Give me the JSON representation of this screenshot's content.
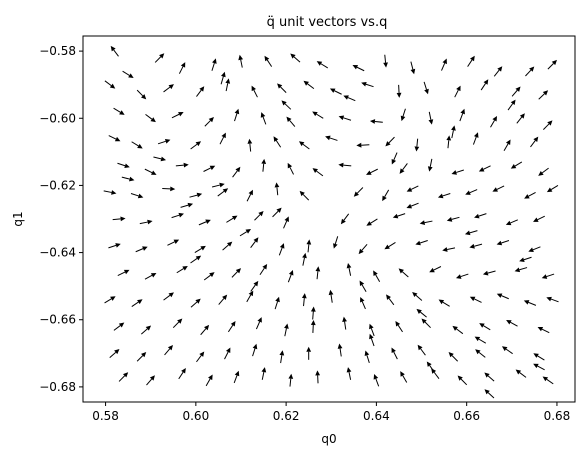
{
  "chart_data": {
    "type": "quiver",
    "title": "q̈ unit vectors vs.q",
    "xlabel": "q0",
    "ylabel": "q1",
    "xlim": [
      0.575,
      0.684
    ],
    "ylim": [
      -0.6845,
      -0.5755
    ],
    "xticks": [
      0.58,
      0.6,
      0.62,
      0.64,
      0.66,
      0.68
    ],
    "xtick_labels": [
      "0.58",
      "0.60",
      "0.62",
      "0.64",
      "0.66",
      "0.68"
    ],
    "yticks": [
      -0.58,
      -0.6,
      -0.62,
      -0.64,
      -0.66,
      -0.68
    ],
    "ytick_labels": [
      "−0.58",
      "−0.60",
      "−0.62",
      "−0.64",
      "−0.66",
      "−0.68"
    ],
    "grid": false,
    "arrow_color": "#000000",
    "vector_field": {
      "center": [
        0.628,
        -0.628
      ],
      "description": "unit direction vectors on a scattered grid, swirling around a central point"
    },
    "vectors": [
      [
        0.582,
        -0.58,
        -0.6,
        0.8
      ],
      [
        0.585,
        -0.587,
        0.85,
        -0.52
      ],
      [
        0.592,
        -0.582,
        0.7,
        0.71
      ],
      [
        0.597,
        -0.585,
        0.45,
        0.89
      ],
      [
        0.604,
        -0.584,
        0.3,
        0.95
      ],
      [
        0.61,
        -0.583,
        -0.2,
        0.98
      ],
      [
        0.616,
        -0.583,
        -0.55,
        0.84
      ],
      [
        0.622,
        -0.582,
        -0.75,
        0.66
      ],
      [
        0.628,
        -0.584,
        -0.85,
        0.52
      ],
      [
        0.636,
        -0.585,
        -0.9,
        0.44
      ],
      [
        0.642,
        -0.583,
        0.1,
        -0.99
      ],
      [
        0.648,
        -0.585,
        0.25,
        -0.97
      ],
      [
        0.655,
        -0.584,
        0.4,
        0.92
      ],
      [
        0.661,
        -0.583,
        0.55,
        0.84
      ],
      [
        0.667,
        -0.586,
        0.62,
        0.78
      ],
      [
        0.674,
        -0.586,
        0.68,
        0.73
      ],
      [
        0.679,
        -0.584,
        0.7,
        0.71
      ],
      [
        0.581,
        -0.59,
        0.8,
        -0.6
      ],
      [
        0.588,
        -0.593,
        0.7,
        -0.71
      ],
      [
        0.594,
        -0.591,
        0.8,
        0.6
      ],
      [
        0.601,
        -0.592,
        0.6,
        0.8
      ],
      [
        0.607,
        -0.59,
        0.2,
        0.98
      ],
      [
        0.613,
        -0.592,
        -0.45,
        0.89
      ],
      [
        0.619,
        -0.591,
        -0.7,
        0.71
      ],
      [
        0.625,
        -0.59,
        -0.8,
        0.6
      ],
      [
        0.631,
        -0.592,
        -0.9,
        0.44
      ],
      [
        0.638,
        -0.59,
        -0.95,
        0.31
      ],
      [
        0.645,
        -0.592,
        0.05,
        -1.0
      ],
      [
        0.651,
        -0.591,
        0.3,
        -0.95
      ],
      [
        0.658,
        -0.592,
        0.45,
        0.89
      ],
      [
        0.664,
        -0.59,
        0.55,
        0.83
      ],
      [
        0.671,
        -0.592,
        0.65,
        0.76
      ],
      [
        0.677,
        -0.593,
        0.72,
        0.69
      ],
      [
        0.583,
        -0.598,
        0.85,
        -0.52
      ],
      [
        0.59,
        -0.6,
        0.8,
        -0.6
      ],
      [
        0.596,
        -0.599,
        0.9,
        0.44
      ],
      [
        0.603,
        -0.601,
        0.7,
        0.71
      ],
      [
        0.609,
        -0.599,
        0.3,
        0.95
      ],
      [
        0.615,
        -0.6,
        -0.35,
        0.94
      ],
      [
        0.621,
        -0.601,
        -0.65,
        0.76
      ],
      [
        0.627,
        -0.599,
        -0.85,
        0.52
      ],
      [
        0.633,
        -0.6,
        -0.95,
        0.31
      ],
      [
        0.64,
        -0.601,
        -0.99,
        0.1
      ],
      [
        0.646,
        -0.599,
        -0.3,
        -0.95
      ],
      [
        0.652,
        -0.6,
        0.2,
        -0.98
      ],
      [
        0.659,
        -0.599,
        0.35,
        0.94
      ],
      [
        0.666,
        -0.601,
        0.5,
        0.87
      ],
      [
        0.672,
        -0.6,
        0.62,
        0.78
      ],
      [
        0.678,
        -0.602,
        0.7,
        0.71
      ],
      [
        0.582,
        -0.606,
        0.9,
        -0.44
      ],
      [
        0.587,
        -0.608,
        0.85,
        -0.52
      ],
      [
        0.593,
        -0.607,
        0.95,
        0.31
      ],
      [
        0.6,
        -0.608,
        0.8,
        0.6
      ],
      [
        0.606,
        -0.606,
        0.45,
        0.89
      ],
      [
        0.612,
        -0.608,
        -0.1,
        0.99
      ],
      [
        0.618,
        -0.607,
        -0.55,
        0.84
      ],
      [
        0.624,
        -0.608,
        -0.8,
        0.6
      ],
      [
        0.63,
        -0.606,
        -0.95,
        0.31
      ],
      [
        0.637,
        -0.608,
        -1.0,
        -0.05
      ],
      [
        0.643,
        -0.607,
        -0.7,
        -0.71
      ],
      [
        0.649,
        -0.608,
        -0.1,
        -0.99
      ],
      [
        0.656,
        -0.607,
        0.1,
        0.99
      ],
      [
        0.662,
        -0.606,
        0.35,
        0.94
      ],
      [
        0.669,
        -0.608,
        0.5,
        0.87
      ],
      [
        0.675,
        -0.607,
        0.6,
        0.8
      ],
      [
        0.584,
        -0.614,
        0.95,
        -0.31
      ],
      [
        0.59,
        -0.616,
        0.9,
        -0.44
      ],
      [
        0.597,
        -0.614,
        0.99,
        0.1
      ],
      [
        0.603,
        -0.615,
        0.9,
        0.44
      ],
      [
        0.609,
        -0.616,
        0.6,
        0.8
      ],
      [
        0.615,
        -0.614,
        0.1,
        0.99
      ],
      [
        0.621,
        -0.615,
        -0.45,
        0.89
      ],
      [
        0.627,
        -0.616,
        -0.8,
        0.6
      ],
      [
        0.633,
        -0.614,
        -0.99,
        0.1
      ],
      [
        0.639,
        -0.616,
        -0.9,
        -0.44
      ],
      [
        0.646,
        -0.615,
        -0.6,
        -0.8
      ],
      [
        0.652,
        -0.614,
        -0.2,
        -0.98
      ],
      [
        0.658,
        -0.616,
        -0.95,
        -0.31
      ],
      [
        0.664,
        -0.615,
        -0.9,
        -0.44
      ],
      [
        0.671,
        -0.614,
        -0.85,
        -0.52
      ],
      [
        0.677,
        -0.616,
        -0.8,
        -0.6
      ],
      [
        0.581,
        -0.622,
        0.98,
        -0.2
      ],
      [
        0.587,
        -0.623,
        0.95,
        -0.31
      ],
      [
        0.594,
        -0.621,
        1.0,
        -0.05
      ],
      [
        0.6,
        -0.623,
        0.97,
        0.26
      ],
      [
        0.606,
        -0.622,
        0.8,
        0.6
      ],
      [
        0.612,
        -0.623,
        0.45,
        0.89
      ],
      [
        0.618,
        -0.621,
        -0.1,
        0.99
      ],
      [
        0.624,
        -0.623,
        -0.7,
        0.71
      ],
      [
        0.636,
        -0.622,
        -0.7,
        -0.71
      ],
      [
        0.642,
        -0.623,
        -0.5,
        -0.87
      ],
      [
        0.648,
        -0.621,
        -0.9,
        -0.44
      ],
      [
        0.655,
        -0.623,
        -0.95,
        -0.31
      ],
      [
        0.661,
        -0.622,
        -0.92,
        -0.39
      ],
      [
        0.667,
        -0.621,
        -0.9,
        -0.44
      ],
      [
        0.674,
        -0.623,
        -0.88,
        -0.48
      ],
      [
        0.679,
        -0.621,
        -0.85,
        -0.52
      ],
      [
        0.583,
        -0.63,
        0.99,
        0.1
      ],
      [
        0.589,
        -0.631,
        0.98,
        0.2
      ],
      [
        0.596,
        -0.629,
        0.95,
        0.31
      ],
      [
        0.602,
        -0.631,
        0.92,
        0.39
      ],
      [
        0.608,
        -0.63,
        0.85,
        0.52
      ],
      [
        0.614,
        -0.629,
        0.7,
        0.71
      ],
      [
        0.62,
        -0.631,
        0.4,
        0.92
      ],
      [
        0.633,
        -0.63,
        -0.6,
        -0.8
      ],
      [
        0.639,
        -0.631,
        -0.85,
        -0.52
      ],
      [
        0.645,
        -0.629,
        -0.95,
        -0.31
      ],
      [
        0.651,
        -0.631,
        -0.98,
        -0.2
      ],
      [
        0.657,
        -0.63,
        -0.97,
        -0.26
      ],
      [
        0.663,
        -0.629,
        -0.95,
        -0.31
      ],
      [
        0.67,
        -0.631,
        -0.92,
        -0.39
      ],
      [
        0.676,
        -0.63,
        -0.9,
        -0.44
      ],
      [
        0.582,
        -0.638,
        0.95,
        0.31
      ],
      [
        0.588,
        -0.639,
        0.92,
        0.39
      ],
      [
        0.595,
        -0.637,
        0.9,
        0.44
      ],
      [
        0.601,
        -0.639,
        0.85,
        0.52
      ],
      [
        0.607,
        -0.638,
        0.75,
        0.66
      ],
      [
        0.613,
        -0.637,
        0.6,
        0.8
      ],
      [
        0.619,
        -0.639,
        0.35,
        0.94
      ],
      [
        0.625,
        -0.638,
        0.1,
        0.99
      ],
      [
        0.631,
        -0.637,
        -0.3,
        -0.95
      ],
      [
        0.637,
        -0.639,
        -0.65,
        -0.76
      ],
      [
        0.643,
        -0.638,
        -0.85,
        -0.52
      ],
      [
        0.65,
        -0.637,
        -0.95,
        -0.31
      ],
      [
        0.656,
        -0.639,
        -0.98,
        -0.2
      ],
      [
        0.662,
        -0.638,
        -0.97,
        -0.26
      ],
      [
        0.668,
        -0.637,
        -0.95,
        -0.31
      ],
      [
        0.675,
        -0.639,
        -0.93,
        -0.37
      ],
      [
        0.584,
        -0.646,
        0.9,
        0.44
      ],
      [
        0.59,
        -0.647,
        0.88,
        0.48
      ],
      [
        0.597,
        -0.645,
        0.85,
        0.52
      ],
      [
        0.603,
        -0.647,
        0.8,
        0.6
      ],
      [
        0.609,
        -0.646,
        0.7,
        0.71
      ],
      [
        0.615,
        -0.645,
        0.55,
        0.83
      ],
      [
        0.621,
        -0.647,
        0.35,
        0.94
      ],
      [
        0.627,
        -0.646,
        0.1,
        0.99
      ],
      [
        0.634,
        -0.645,
        -0.2,
        0.98
      ],
      [
        0.64,
        -0.647,
        -0.5,
        0.87
      ],
      [
        0.646,
        -0.646,
        -0.75,
        0.66
      ],
      [
        0.653,
        -0.645,
        -0.9,
        -0.44
      ],
      [
        0.659,
        -0.647,
        -0.95,
        -0.31
      ],
      [
        0.665,
        -0.646,
        -0.97,
        -0.26
      ],
      [
        0.672,
        -0.645,
        -0.96,
        -0.28
      ],
      [
        0.678,
        -0.647,
        -0.95,
        -0.31
      ],
      [
        0.581,
        -0.654,
        0.85,
        0.52
      ],
      [
        0.587,
        -0.655,
        0.83,
        0.56
      ],
      [
        0.594,
        -0.653,
        0.8,
        0.6
      ],
      [
        0.6,
        -0.655,
        0.75,
        0.66
      ],
      [
        0.606,
        -0.654,
        0.65,
        0.76
      ],
      [
        0.612,
        -0.653,
        0.5,
        0.87
      ],
      [
        0.618,
        -0.655,
        0.3,
        0.95
      ],
      [
        0.624,
        -0.654,
        0.1,
        0.99
      ],
      [
        0.63,
        -0.653,
        -0.15,
        0.99
      ],
      [
        0.637,
        -0.655,
        -0.4,
        0.92
      ],
      [
        0.643,
        -0.654,
        -0.6,
        0.8
      ],
      [
        0.649,
        -0.653,
        -0.75,
        0.66
      ],
      [
        0.655,
        -0.655,
        -0.85,
        0.52
      ],
      [
        0.662,
        -0.654,
        -0.9,
        0.44
      ],
      [
        0.668,
        -0.653,
        -0.92,
        0.39
      ],
      [
        0.674,
        -0.655,
        -0.93,
        0.37
      ],
      [
        0.679,
        -0.654,
        -0.94,
        0.34
      ],
      [
        0.583,
        -0.662,
        0.8,
        0.6
      ],
      [
        0.589,
        -0.663,
        0.75,
        0.66
      ],
      [
        0.596,
        -0.661,
        0.7,
        0.71
      ],
      [
        0.602,
        -0.663,
        0.65,
        0.76
      ],
      [
        0.608,
        -0.662,
        0.55,
        0.83
      ],
      [
        0.614,
        -0.661,
        0.4,
        0.92
      ],
      [
        0.62,
        -0.663,
        0.2,
        0.98
      ],
      [
        0.626,
        -0.662,
        0.05,
        1.0
      ],
      [
        0.633,
        -0.661,
        -0.15,
        0.99
      ],
      [
        0.639,
        -0.663,
        -0.35,
        0.94
      ],
      [
        0.645,
        -0.662,
        -0.55,
        0.83
      ],
      [
        0.651,
        -0.661,
        -0.7,
        0.71
      ],
      [
        0.658,
        -0.663,
        -0.8,
        0.6
      ],
      [
        0.664,
        -0.662,
        -0.85,
        0.52
      ],
      [
        0.67,
        -0.661,
        -0.88,
        0.48
      ],
      [
        0.677,
        -0.663,
        -0.9,
        0.44
      ],
      [
        0.582,
        -0.67,
        0.75,
        0.66
      ],
      [
        0.588,
        -0.671,
        0.7,
        0.71
      ],
      [
        0.594,
        -0.669,
        0.65,
        0.76
      ],
      [
        0.601,
        -0.671,
        0.6,
        0.8
      ],
      [
        0.607,
        -0.67,
        0.45,
        0.89
      ],
      [
        0.613,
        -0.669,
        0.3,
        0.95
      ],
      [
        0.619,
        -0.671,
        0.15,
        0.99
      ],
      [
        0.625,
        -0.67,
        0.0,
        1.0
      ],
      [
        0.632,
        -0.669,
        -0.15,
        0.99
      ],
      [
        0.638,
        -0.671,
        -0.3,
        0.95
      ],
      [
        0.644,
        -0.67,
        -0.45,
        0.89
      ],
      [
        0.65,
        -0.669,
        -0.6,
        0.8
      ],
      [
        0.657,
        -0.671,
        -0.7,
        0.71
      ],
      [
        0.663,
        -0.67,
        -0.78,
        0.63
      ],
      [
        0.669,
        -0.669,
        -0.82,
        0.57
      ],
      [
        0.676,
        -0.671,
        -0.85,
        0.52
      ],
      [
        0.584,
        -0.677,
        0.7,
        0.71
      ],
      [
        0.59,
        -0.678,
        0.65,
        0.76
      ],
      [
        0.597,
        -0.676,
        0.55,
        0.83
      ],
      [
        0.603,
        -0.678,
        0.5,
        0.87
      ],
      [
        0.609,
        -0.677,
        0.35,
        0.94
      ],
      [
        0.615,
        -0.676,
        0.2,
        0.98
      ],
      [
        0.621,
        -0.678,
        0.1,
        0.99
      ],
      [
        0.627,
        -0.677,
        -0.05,
        1.0
      ],
      [
        0.634,
        -0.676,
        -0.2,
        0.98
      ],
      [
        0.64,
        -0.678,
        -0.35,
        0.94
      ],
      [
        0.646,
        -0.677,
        -0.5,
        0.87
      ],
      [
        0.653,
        -0.676,
        -0.6,
        0.8
      ],
      [
        0.659,
        -0.678,
        -0.7,
        0.71
      ],
      [
        0.665,
        -0.677,
        -0.75,
        0.66
      ],
      [
        0.672,
        -0.676,
        -0.8,
        0.6
      ],
      [
        0.678,
        -0.678,
        -0.82,
        0.57
      ],
      [
        0.585,
        -0.618,
        0.97,
        -0.24
      ],
      [
        0.598,
        -0.626,
        0.96,
        0.28
      ],
      [
        0.611,
        -0.634,
        0.85,
        0.53
      ],
      [
        0.624,
        -0.642,
        0.2,
        0.98
      ],
      [
        0.637,
        -0.65,
        -0.5,
        0.87
      ],
      [
        0.65,
        -0.658,
        -0.78,
        0.63
      ],
      [
        0.663,
        -0.666,
        -0.86,
        0.51
      ],
      [
        0.676,
        -0.674,
        -0.88,
        0.47
      ],
      [
        0.592,
        -0.612,
        0.97,
        -0.24
      ],
      [
        0.605,
        -0.62,
        0.97,
        0.24
      ],
      [
        0.618,
        -0.628,
        0.7,
        0.71
      ],
      [
        0.644,
        -0.612,
        -0.4,
        -0.92
      ],
      [
        0.657,
        -0.604,
        0.2,
        0.98
      ],
      [
        0.67,
        -0.596,
        0.58,
        0.81
      ],
      [
        0.62,
        -0.596,
        -0.72,
        0.69
      ],
      [
        0.606,
        -0.588,
        0.28,
        0.96
      ],
      [
        0.634,
        -0.594,
        -0.92,
        0.39
      ],
      [
        0.648,
        -0.626,
        -0.93,
        -0.37
      ],
      [
        0.661,
        -0.634,
        -0.96,
        -0.28
      ],
      [
        0.673,
        -0.642,
        -0.95,
        -0.31
      ],
      [
        0.6,
        -0.642,
        0.82,
        0.57
      ],
      [
        0.613,
        -0.65,
        0.58,
        0.81
      ],
      [
        0.626,
        -0.658,
        0.08,
        1.0
      ],
      [
        0.639,
        -0.666,
        -0.33,
        0.94
      ],
      [
        0.652,
        -0.674,
        -0.58,
        0.81
      ],
      [
        0.665,
        -0.682,
        -0.73,
        0.68
      ]
    ]
  }
}
